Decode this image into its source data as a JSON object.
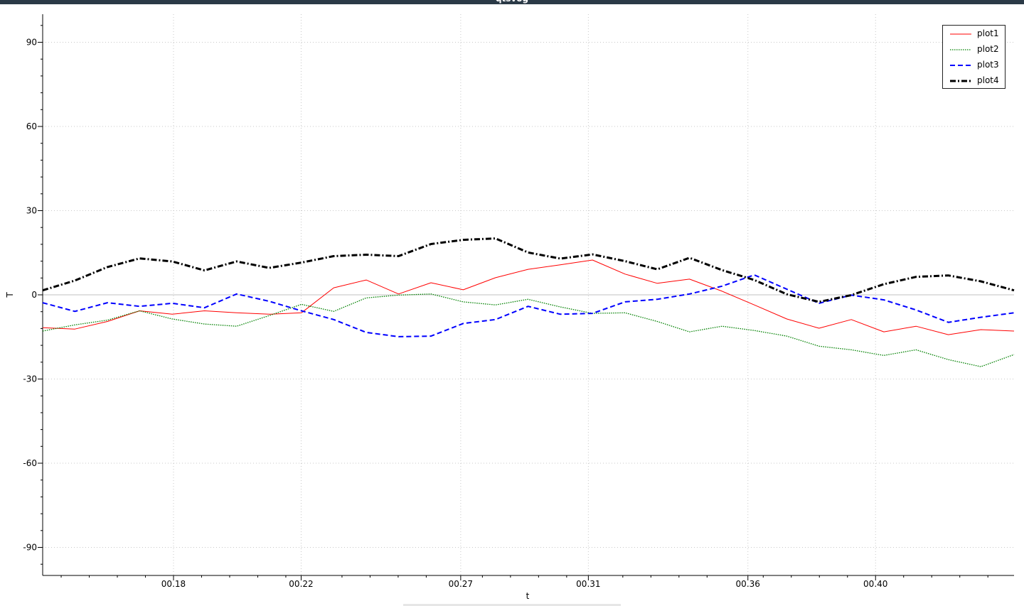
{
  "window": {
    "title": "qtsvog"
  },
  "chart_data": {
    "type": "line",
    "title": "",
    "xlabel": "t",
    "ylabel": "T",
    "xlim": [
      0.139,
      0.4434
    ],
    "ylim": [
      -100,
      100
    ],
    "x_ticks": [
      0.18,
      0.22,
      0.27,
      0.31,
      0.36,
      0.4
    ],
    "x_tick_labels": [
      "00.18",
      "00.22",
      "00.27",
      "00.31",
      "00.36",
      "00.40"
    ],
    "y_ticks": [
      90,
      60,
      30,
      0,
      -30,
      -60,
      -90
    ],
    "y_tick_labels": [
      "90",
      "60",
      "30",
      "0",
      "-30",
      "-60",
      "-90"
    ],
    "grid": true,
    "legend_position": "top-right",
    "x": [
      0.139,
      0.1491,
      0.1593,
      0.1694,
      0.1796,
      0.1897,
      0.1998,
      0.21,
      0.2201,
      0.2302,
      0.2404,
      0.2505,
      0.2607,
      0.2708,
      0.2809,
      0.2911,
      0.3012,
      0.3113,
      0.3215,
      0.3316,
      0.3417,
      0.3519,
      0.362,
      0.3722,
      0.3823,
      0.3924,
      0.4026,
      0.4127,
      0.4228,
      0.433,
      0.4434
    ],
    "series": [
      {
        "name": "plot1",
        "color": "#ff0000",
        "style": "solid",
        "values": [
          -11.7,
          -12.2,
          -9.5,
          -5.7,
          -6.9,
          -5.7,
          -6.4,
          -6.9,
          -6.4,
          2.5,
          5.3,
          0.3,
          4.3,
          1.8,
          6.1,
          9.1,
          10.7,
          12.4,
          7.4,
          4.1,
          5.6,
          1.3,
          -3.6,
          -8.6,
          -11.9,
          -8.8,
          -13.2,
          -11.2,
          -14.2,
          -12.4,
          -12.9
        ]
      },
      {
        "name": "plot2",
        "color": "#008000",
        "style": "dotted",
        "values": [
          -12.9,
          -10.7,
          -9.0,
          -5.7,
          -8.6,
          -10.4,
          -11.2,
          -7.4,
          -3.4,
          -5.9,
          -1.1,
          -0.1,
          0.3,
          -2.5,
          -3.6,
          -1.6,
          -4.3,
          -6.6,
          -6.4,
          -9.5,
          -13.2,
          -11.2,
          -12.7,
          -14.7,
          -18.3,
          -19.6,
          -21.6,
          -19.6,
          -23.1,
          -25.6,
          -21.3
        ]
      },
      {
        "name": "plot3",
        "color": "#0000ff",
        "style": "dashed",
        "values": [
          -2.8,
          -5.9,
          -2.8,
          -4.1,
          -3.0,
          -4.6,
          0.3,
          -2.3,
          -5.7,
          -8.8,
          -13.4,
          -14.9,
          -14.7,
          -10.2,
          -8.8,
          -4.1,
          -6.9,
          -6.6,
          -2.5,
          -1.6,
          0.3,
          3.1,
          7.1,
          2.0,
          -3.0,
          -0.1,
          -1.8,
          -5.4,
          -9.8,
          -8.0,
          -6.4
        ]
      },
      {
        "name": "plot4",
        "color": "#000000",
        "style": "dash-dot",
        "values": [
          1.6,
          5.1,
          9.9,
          13.0,
          11.9,
          8.7,
          11.9,
          9.6,
          11.5,
          13.8,
          14.3,
          13.8,
          18.1,
          19.6,
          20.1,
          15.1,
          12.9,
          14.4,
          12.0,
          9.1,
          13.2,
          8.8,
          5.3,
          0.2,
          -2.5,
          -0.1,
          3.8,
          6.4,
          6.9,
          4.8,
          1.6
        ]
      }
    ]
  }
}
